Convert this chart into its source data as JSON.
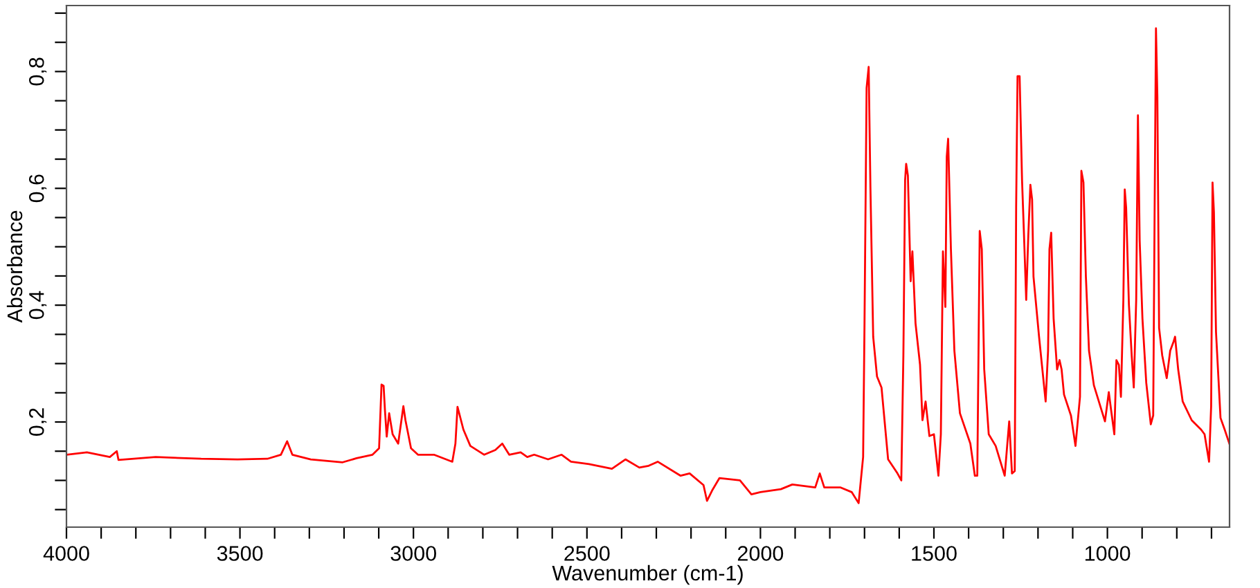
{
  "chart_data": {
    "type": "line",
    "xlabel": "Wavenumber (cm-1)",
    "ylabel": "Absorbance",
    "xlim": [
      4000,
      648
    ],
    "ylim": [
      0.02,
      0.913
    ],
    "xticks": [
      4000,
      {
        "value": 3900,
        "label": null
      },
      {
        "value": 3800,
        "label": null
      },
      {
        "value": 3700,
        "label": null
      },
      {
        "value": 3600,
        "label": null
      },
      3500,
      {
        "value": 3400,
        "label": null
      },
      {
        "value": 3300,
        "label": null
      },
      {
        "value": 3200,
        "label": null
      },
      {
        "value": 3100,
        "label": null
      },
      3000,
      {
        "value": 2900,
        "label": null
      },
      {
        "value": 2800,
        "label": null
      },
      {
        "value": 2700,
        "label": null
      },
      {
        "value": 2600,
        "label": null
      },
      2500,
      {
        "value": 2400,
        "label": null
      },
      {
        "value": 2300,
        "label": null
      },
      {
        "value": 2200,
        "label": null
      },
      {
        "value": 2100,
        "label": null
      },
      2000,
      {
        "value": 1900,
        "label": null
      },
      {
        "value": 1800,
        "label": null
      },
      {
        "value": 1700,
        "label": null
      },
      {
        "value": 1600,
        "label": null
      },
      1500,
      {
        "value": 1400,
        "label": null
      },
      {
        "value": 1300,
        "label": null
      },
      {
        "value": 1200,
        "label": null
      },
      {
        "value": 1100,
        "label": null
      },
      1000,
      {
        "value": 900,
        "label": null
      },
      {
        "value": 800,
        "label": null
      },
      {
        "value": 700,
        "label": null
      }
    ],
    "yticks": [
      {
        "value": 0.05,
        "label": null
      },
      {
        "value": 0.1,
        "label": null
      },
      {
        "value": 0.15,
        "label": null
      },
      {
        "value": 0.2,
        "label": "0,2"
      },
      {
        "value": 0.25,
        "label": null
      },
      {
        "value": 0.3,
        "label": null
      },
      {
        "value": 0.35,
        "label": null
      },
      {
        "value": 0.4,
        "label": "0,4"
      },
      {
        "value": 0.45,
        "label": null
      },
      {
        "value": 0.5,
        "label": null
      },
      {
        "value": 0.55,
        "label": null
      },
      {
        "value": 0.6,
        "label": "0,6"
      },
      {
        "value": 0.65,
        "label": null
      },
      {
        "value": 0.7,
        "label": null
      },
      {
        "value": 0.75,
        "label": null
      },
      {
        "value": 0.8,
        "label": "0,8"
      },
      {
        "value": 0.85,
        "label": null
      },
      {
        "value": 0.9,
        "label": null
      }
    ],
    "grid": false,
    "legend": false,
    "marker": "none",
    "line_style": "solid",
    "series": [
      {
        "color": "#ff0000",
        "x": [
          4000,
          3941,
          3875,
          3855,
          3850,
          3743,
          3612,
          3507,
          3421,
          3382,
          3364,
          3349,
          3296,
          3204,
          3164,
          3118,
          3099,
          3092,
          3086,
          3082,
          3077,
          3070,
          3060,
          3044,
          3029,
          3023,
          3007,
          2987,
          2941,
          2888,
          2879,
          2873,
          2856,
          2836,
          2796,
          2764,
          2744,
          2724,
          2691,
          2672,
          2652,
          2612,
          2573,
          2546,
          2494,
          2428,
          2389,
          2349,
          2322,
          2296,
          2230,
          2204,
          2164,
          2154,
          2138,
          2118,
          2059,
          2026,
          2000,
          1941,
          1908,
          1842,
          1829,
          1816,
          1770,
          1737,
          1717,
          1704,
          1700,
          1694,
          1688,
          1683,
          1675,
          1664,
          1651,
          1632,
          1605,
          1594,
          1588,
          1583,
          1580,
          1575,
          1567,
          1562,
          1553,
          1540,
          1533,
          1524,
          1513,
          1500,
          1487,
          1480,
          1474,
          1467,
          1463,
          1459,
          1451,
          1441,
          1425,
          1395,
          1382,
          1375,
          1368,
          1362,
          1355,
          1342,
          1322,
          1296,
          1283,
          1275,
          1267,
          1263,
          1259,
          1253,
          1246,
          1241,
          1234,
          1228,
          1222,
          1217,
          1213,
          1197,
          1178,
          1171,
          1167,
          1162,
          1155,
          1145,
          1138,
          1132,
          1125,
          1105,
          1092,
          1079,
          1075,
          1069,
          1062,
          1053,
          1039,
          1007,
          996,
          989,
          980,
          974,
          967,
          961,
          954,
          950,
          946,
          938,
          930,
          924,
          917,
          912,
          907,
          899,
          888,
          875,
          868,
          864,
          860,
          856,
          851,
          842,
          829,
          819,
          809,
          805,
          796,
          783,
          757,
          730,
          720,
          707,
          701,
          697,
          693,
          687,
          674,
          662,
          648
        ],
        "values": [
          0.144,
          0.148,
          0.14,
          0.15,
          0.135,
          0.14,
          0.137,
          0.136,
          0.137,
          0.144,
          0.167,
          0.144,
          0.136,
          0.131,
          0.138,
          0.144,
          0.155,
          0.264,
          0.262,
          0.219,
          0.175,
          0.215,
          0.179,
          0.163,
          0.227,
          0.203,
          0.155,
          0.144,
          0.144,
          0.132,
          0.163,
          0.226,
          0.187,
          0.159,
          0.144,
          0.152,
          0.163,
          0.144,
          0.148,
          0.14,
          0.144,
          0.136,
          0.144,
          0.132,
          0.128,
          0.12,
          0.136,
          0.122,
          0.125,
          0.132,
          0.108,
          0.112,
          0.092,
          0.065,
          0.084,
          0.104,
          0.1,
          0.076,
          0.08,
          0.085,
          0.093,
          0.088,
          0.112,
          0.088,
          0.088,
          0.08,
          0.061,
          0.14,
          0.369,
          0.772,
          0.808,
          0.602,
          0.346,
          0.278,
          0.259,
          0.136,
          0.112,
          0.1,
          0.314,
          0.614,
          0.642,
          0.622,
          0.441,
          0.492,
          0.369,
          0.298,
          0.203,
          0.235,
          0.176,
          0.179,
          0.108,
          0.179,
          0.492,
          0.397,
          0.654,
          0.685,
          0.496,
          0.322,
          0.215,
          0.163,
          0.108,
          0.108,
          0.527,
          0.496,
          0.29,
          0.179,
          0.159,
          0.108,
          0.201,
          0.112,
          0.116,
          0.567,
          0.792,
          0.792,
          0.614,
          0.531,
          0.409,
          0.519,
          0.606,
          0.581,
          0.449,
          0.346,
          0.235,
          0.322,
          0.496,
          0.524,
          0.377,
          0.29,
          0.306,
          0.29,
          0.247,
          0.211,
          0.159,
          0.243,
          0.63,
          0.61,
          0.449,
          0.322,
          0.263,
          0.201,
          0.251,
          0.219,
          0.179,
          0.306,
          0.298,
          0.243,
          0.409,
          0.598,
          0.567,
          0.401,
          0.314,
          0.259,
          0.409,
          0.725,
          0.511,
          0.377,
          0.267,
          0.196,
          0.211,
          0.554,
          0.874,
          0.757,
          0.361,
          0.314,
          0.275,
          0.322,
          0.338,
          0.346,
          0.29,
          0.235,
          0.203,
          0.187,
          0.179,
          0.132,
          0.227,
          0.61,
          0.559,
          0.354,
          0.207,
          0.187,
          0.162
        ]
      }
    ]
  }
}
